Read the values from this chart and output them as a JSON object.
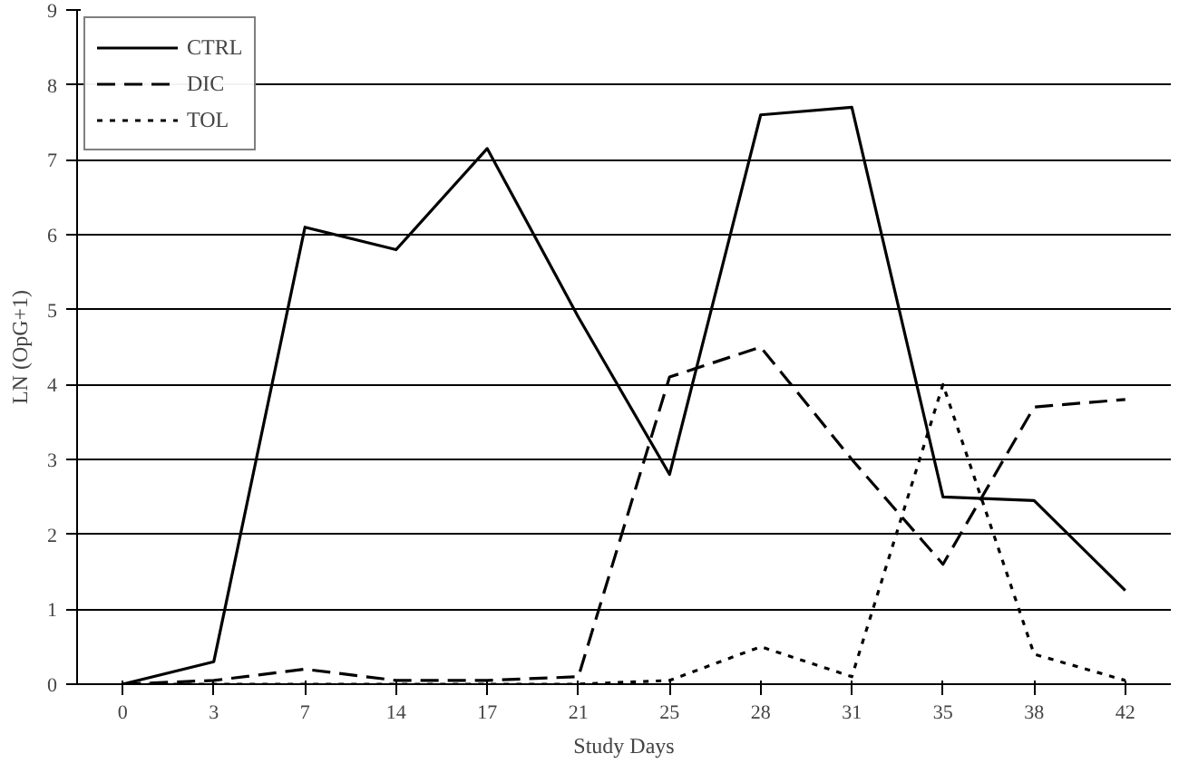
{
  "chart_data": {
    "type": "line",
    "xlabel": "Study Days",
    "ylabel": "LN (OpG+1)",
    "categories": [
      "0",
      "3",
      "7",
      "14",
      "17",
      "21",
      "25",
      "28",
      "31",
      "35",
      "38",
      "42"
    ],
    "ylim": [
      0,
      9
    ],
    "yticks": [
      0,
      1,
      2,
      3,
      4,
      5,
      6,
      7,
      8,
      9
    ],
    "grid": "y",
    "legend": "top left",
    "marker": "none",
    "series": [
      {
        "name": "CTRL",
        "color": "#000000",
        "line_style": "solid",
        "values": [
          0,
          0.3,
          6.1,
          5.8,
          7.15,
          4.9,
          2.8,
          7.6,
          7.7,
          2.5,
          2.45,
          1.25
        ]
      },
      {
        "name": "DIC",
        "color": "#000000",
        "line_style": "dashed",
        "values": [
          0,
          0.05,
          0.2,
          0.05,
          0.05,
          0.1,
          4.1,
          4.5,
          3.0,
          1.6,
          3.7,
          3.8
        ]
      },
      {
        "name": "TOL",
        "color": "#000000",
        "line_style": "dotted",
        "values": [
          0,
          0,
          0,
          0,
          0,
          0,
          0.05,
          0.5,
          0.1,
          4.0,
          0.4,
          0.05
        ]
      }
    ]
  }
}
